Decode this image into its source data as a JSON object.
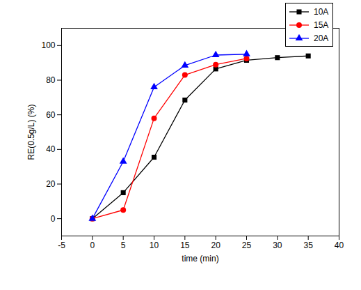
{
  "chart_data": {
    "type": "line",
    "x_label": "time (min)",
    "y_label": "RE(0.5g/L) (%)",
    "x": [
      0,
      5,
      10,
      15,
      20,
      25,
      30,
      35
    ],
    "series": [
      {
        "name": "10A",
        "color": "#000000",
        "marker": "square",
        "values": [
          0,
          15,
          35.5,
          68.5,
          86.5,
          91.5,
          93,
          94
        ]
      },
      {
        "name": "15A",
        "color": "#ff0000",
        "marker": "circle",
        "values": [
          0,
          5,
          58,
          83,
          89,
          92.5,
          null,
          null
        ]
      },
      {
        "name": "20A",
        "color": "#0000ff",
        "marker": "triangle",
        "values": [
          0,
          33,
          76,
          88.5,
          94.5,
          95,
          null,
          null
        ]
      }
    ],
    "xlim": [
      -5,
      40
    ],
    "xticks": [
      -5,
      0,
      5,
      10,
      15,
      20,
      25,
      30,
      35,
      40
    ],
    "ylim": [
      -10,
      110
    ],
    "yticks": [
      0,
      20,
      40,
      60,
      80,
      100
    ],
    "legend": "top-right",
    "grid": false
  }
}
